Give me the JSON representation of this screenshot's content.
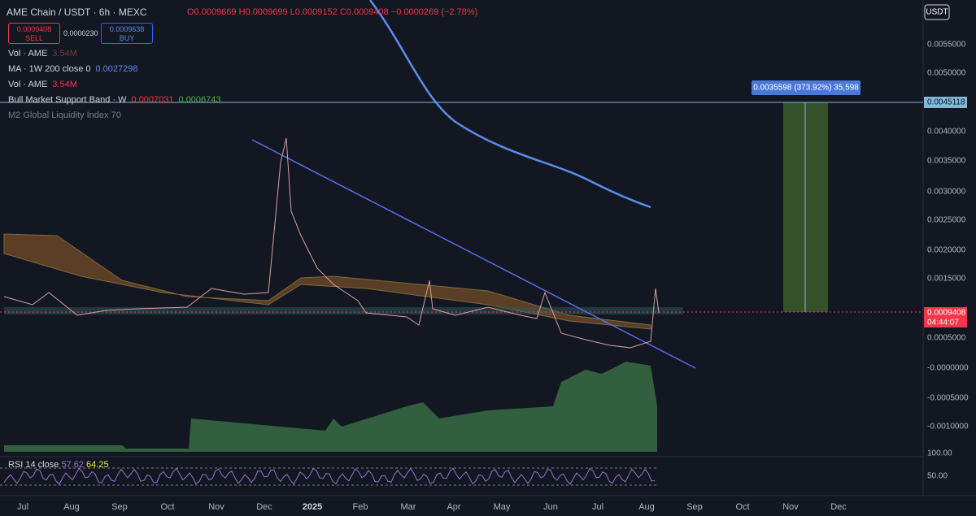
{
  "header": {
    "symbol": "AME Chain / USDT · 6h · MEXC",
    "open": "O0.0009669",
    "high": "H0.0009699",
    "low": "L0.0009152",
    "close": "C0.0009408",
    "change": "−0.0000269 (−2.78%)",
    "sell_price": "0.0009408",
    "sell_label": "SELL",
    "spread": "0.0000230",
    "buy_price": "0.0009638",
    "buy_label": "BUY",
    "currency_button": "USDT"
  },
  "indicators": [
    {
      "name": "Vol · AME",
      "values": [
        "3.54M"
      ]
    },
    {
      "name": "MA · 1W 200 close 0",
      "values": [
        "0.0027298"
      ]
    },
    {
      "name": "Vol · AME",
      "values": [
        "3.54M"
      ]
    },
    {
      "name": "Bull Market Support Band · W",
      "values": [
        "0.0007031",
        "0.0006743"
      ]
    },
    {
      "name": "M2 Global Liquidity Index 70",
      "values": []
    }
  ],
  "price_axis": [
    "0.0055000",
    "0.0050000",
    "0.0045118",
    "0.0040000",
    "0.0035000",
    "0.0030000",
    "0.0025000",
    "0.0020000",
    "0.0015000",
    "0.0009408",
    "04:44:07",
    "0.0005000",
    "-0.0000000",
    "-0.0005000",
    "-0.0010000",
    "100.00",
    "50.00"
  ],
  "time_axis": [
    "Jul",
    "Aug",
    "Sep",
    "Oct",
    "Nov",
    "Dec",
    "2025",
    "Feb",
    "Mar",
    "Apr",
    "May",
    "Jun",
    "Jul",
    "Aug",
    "Sep",
    "Oct",
    "Nov",
    "Dec"
  ],
  "measure_label": "0.0035598 (373.92%) 35,598",
  "rsi": {
    "name": "RSI 14 close",
    "values": [
      "57.62",
      "64.25"
    ]
  }
}
